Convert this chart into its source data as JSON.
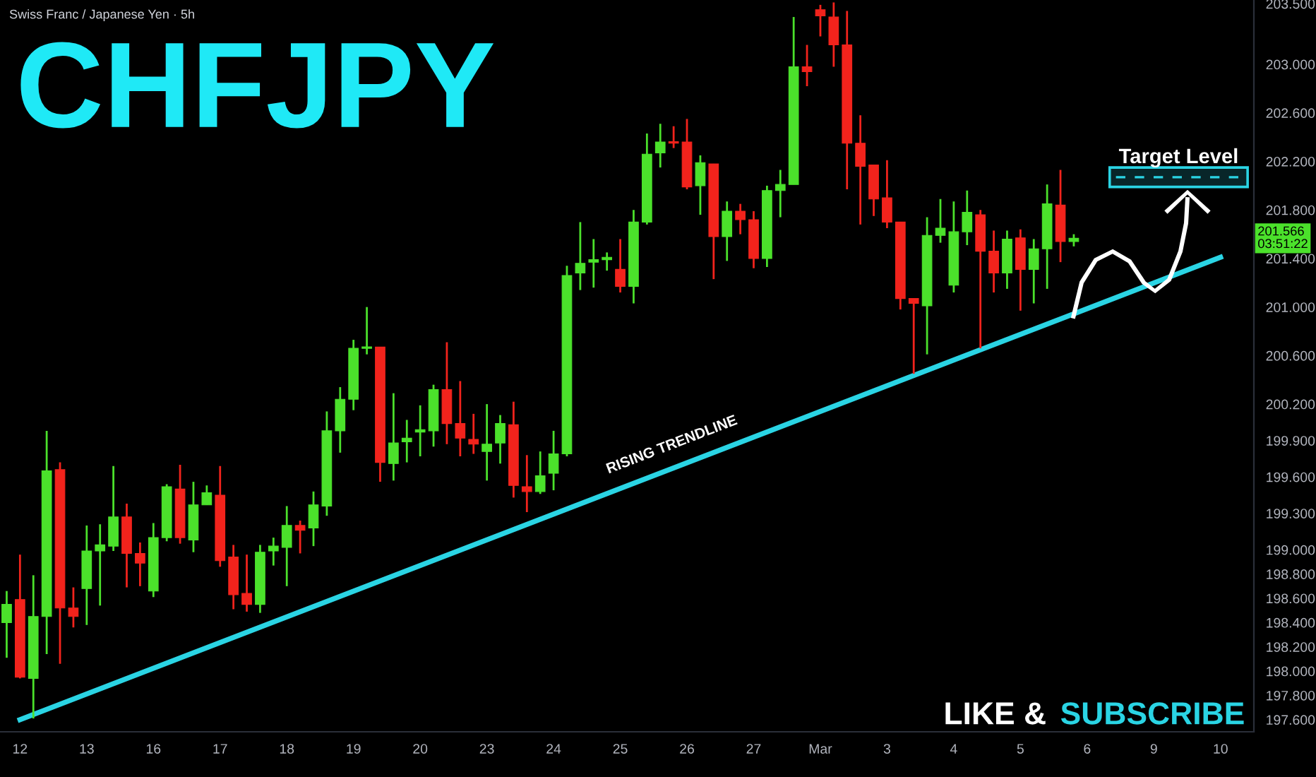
{
  "chart_data": {
    "type": "candlestick",
    "title": "CHFJPY",
    "subtitle": "Swiss Franc / Japanese Yen · 5h",
    "categories": [
      null,
      "12",
      null,
      null,
      null,
      null,
      "13",
      null,
      null,
      null,
      null,
      "16",
      null,
      null,
      null,
      null,
      "17",
      null,
      null,
      null,
      null,
      "18",
      null,
      null,
      null,
      null,
      "19",
      null,
      null,
      null,
      null,
      "20",
      null,
      null,
      null,
      null,
      "23",
      null,
      null,
      null,
      null,
      "24",
      null,
      null,
      null,
      null,
      "25",
      null,
      null,
      null,
      null,
      "26",
      null,
      null,
      null,
      null,
      "27",
      null,
      null,
      null,
      null,
      "Mar",
      null,
      null,
      null,
      null,
      "3",
      null,
      null,
      null,
      null,
      "4",
      null,
      null,
      null,
      null,
      "5",
      null,
      null,
      null,
      null,
      "6",
      null,
      null,
      null,
      null,
      "9",
      null,
      null,
      null,
      null,
      "10",
      null,
      null
    ],
    "ohlc": [
      [
        198.4,
        198.66,
        198.11,
        198.55
      ],
      [
        198.59,
        198.96,
        197.94,
        197.95
      ],
      [
        197.94,
        198.79,
        197.61,
        198.45
      ],
      [
        198.45,
        199.98,
        198.14,
        199.65
      ],
      [
        199.66,
        199.72,
        198.06,
        198.52
      ],
      [
        198.52,
        198.69,
        198.36,
        198.45
      ],
      [
        198.68,
        199.2,
        198.38,
        198.99
      ],
      [
        198.99,
        199.21,
        198.54,
        199.04
      ],
      [
        199.03,
        199.69,
        198.99,
        199.27
      ],
      [
        199.27,
        199.38,
        198.69,
        198.97
      ],
      [
        198.97,
        199.06,
        198.7,
        198.89
      ],
      [
        198.66,
        199.22,
        198.61,
        199.1
      ],
      [
        199.1,
        199.54,
        199.07,
        199.52
      ],
      [
        199.5,
        199.7,
        199.05,
        199.1
      ],
      [
        199.08,
        199.56,
        198.98,
        199.37
      ],
      [
        199.37,
        199.53,
        199.37,
        199.47
      ],
      [
        199.45,
        199.69,
        198.86,
        198.91
      ],
      [
        198.94,
        199.04,
        198.51,
        198.63
      ],
      [
        198.64,
        198.96,
        198.49,
        198.55
      ],
      [
        198.55,
        199.04,
        198.48,
        198.98
      ],
      [
        198.99,
        199.1,
        198.87,
        199.03
      ],
      [
        199.02,
        199.36,
        198.7,
        199.2
      ],
      [
        199.2,
        199.24,
        198.97,
        199.16
      ],
      [
        199.18,
        199.48,
        199.03,
        199.37
      ],
      [
        199.36,
        200.14,
        199.28,
        199.98
      ],
      [
        199.98,
        200.34,
        199.8,
        200.24
      ],
      [
        200.24,
        200.73,
        200.15,
        200.66
      ],
      [
        200.66,
        201.0,
        200.61,
        200.67
      ],
      [
        200.67,
        200.67,
        199.56,
        199.72
      ],
      [
        199.71,
        200.29,
        199.57,
        199.88
      ],
      [
        199.89,
        200.07,
        199.72,
        199.92
      ],
      [
        199.97,
        200.19,
        199.77,
        199.99
      ],
      [
        199.98,
        200.36,
        199.85,
        200.32
      ],
      [
        200.32,
        200.71,
        199.87,
        200.04
      ],
      [
        200.04,
        200.39,
        199.77,
        199.92
      ],
      [
        199.91,
        200.12,
        199.79,
        199.87
      ],
      [
        199.81,
        200.2,
        199.57,
        199.87
      ],
      [
        199.88,
        200.11,
        199.71,
        200.04
      ],
      [
        200.03,
        200.22,
        199.43,
        199.53
      ],
      [
        199.52,
        199.78,
        199.31,
        199.48
      ],
      [
        199.48,
        199.81,
        199.46,
        199.61
      ],
      [
        199.63,
        199.98,
        199.49,
        199.79
      ],
      [
        199.79,
        201.34,
        199.77,
        201.26
      ],
      [
        201.28,
        201.7,
        201.14,
        201.36
      ],
      [
        201.37,
        201.56,
        201.16,
        201.39
      ],
      [
        201.39,
        201.45,
        201.3,
        201.41
      ],
      [
        201.31,
        201.56,
        201.12,
        201.17
      ],
      [
        201.17,
        201.8,
        201.03,
        201.7
      ],
      [
        201.7,
        202.43,
        201.68,
        202.26
      ],
      [
        202.27,
        202.51,
        202.15,
        202.36
      ],
      [
        202.36,
        202.49,
        202.31,
        202.35
      ],
      [
        202.36,
        202.55,
        201.97,
        201.99
      ],
      [
        202.0,
        202.25,
        201.76,
        202.19
      ],
      [
        202.18,
        202.18,
        201.23,
        201.58
      ],
      [
        201.58,
        201.87,
        201.38,
        201.79
      ],
      [
        201.79,
        201.85,
        201.6,
        201.72
      ],
      [
        201.72,
        201.79,
        201.32,
        201.4
      ],
      [
        201.4,
        202.0,
        201.33,
        201.96
      ],
      [
        201.96,
        202.13,
        201.74,
        202.01
      ],
      [
        202.01,
        203.39,
        202.01,
        202.98
      ],
      [
        202.98,
        203.16,
        202.82,
        202.94
      ],
      [
        203.45,
        203.49,
        203.23,
        203.4
      ],
      [
        203.39,
        203.51,
        202.98,
        203.16
      ],
      [
        203.16,
        203.44,
        201.97,
        202.35
      ],
      [
        202.35,
        202.58,
        201.68,
        202.16
      ],
      [
        202.17,
        202.17,
        201.75,
        201.89
      ],
      [
        201.9,
        202.21,
        201.65,
        201.7
      ],
      [
        201.7,
        201.7,
        200.98,
        201.07
      ],
      [
        201.07,
        201.07,
        200.45,
        201.03
      ],
      [
        201.01,
        201.74,
        200.61,
        201.59
      ],
      [
        201.59,
        201.89,
        201.53,
        201.65
      ],
      [
        201.18,
        201.87,
        201.12,
        201.62
      ],
      [
        201.62,
        201.96,
        201.51,
        201.78
      ],
      [
        201.76,
        201.8,
        200.66,
        201.46
      ],
      [
        201.46,
        201.63,
        201.12,
        201.28
      ],
      [
        201.28,
        201.63,
        201.15,
        201.56
      ],
      [
        201.57,
        201.64,
        200.97,
        201.31
      ],
      [
        201.31,
        201.56,
        201.03,
        201.48
      ],
      [
        201.48,
        202.01,
        201.15,
        201.85
      ],
      [
        201.84,
        202.13,
        201.37,
        201.54
      ],
      [
        201.54,
        201.6,
        201.5,
        201.566
      ],
      null,
      null,
      null,
      null,
      null,
      null,
      null,
      null,
      null,
      null,
      null,
      null,
      null
    ],
    "colors": [
      "#4be12b",
      "#f2231c",
      "#4be12b",
      "#4be12b",
      "#f2231c",
      "#f2231c",
      "#4be12b",
      "#4be12b",
      "#4be12b",
      "#f2231c",
      "#f2231c",
      "#4be12b",
      "#4be12b",
      "#f2231c",
      "#4be12b",
      "#4be12b",
      "#f2231c",
      "#f2231c",
      "#f2231c",
      "#4be12b",
      "#4be12b",
      "#4be12b",
      "#f2231c",
      "#4be12b",
      "#4be12b",
      "#4be12b",
      "#4be12b",
      "#4be12b",
      "#f2231c",
      "#4be12b",
      "#4be12b",
      "#4be12b",
      "#4be12b",
      "#f2231c",
      "#f2231c",
      "#f2231c",
      "#4be12b",
      "#4be12b",
      "#f2231c",
      "#f2231c",
      "#4be12b",
      "#4be12b",
      "#4be12b",
      "#4be12b",
      "#4be12b",
      "#4be12b",
      "#f2231c",
      "#4be12b",
      "#4be12b",
      "#4be12b",
      "#f2231c",
      "#f2231c",
      "#4be12b",
      "#f2231c",
      "#4be12b",
      "#f2231c",
      "#f2231c",
      "#4be12b",
      "#4be12b",
      "#4be12b",
      "#f2231c",
      "#f2231c",
      "#f2231c",
      "#f2231c",
      "#f2231c",
      "#f2231c",
      "#f2231c",
      "#f2231c",
      "#f2231c",
      "#4be12b",
      "#4be12b",
      "#4be12b",
      "#4be12b",
      "#f2231c",
      "#f2231c",
      "#4be12b",
      "#f2231c",
      "#4be12b",
      "#4be12b",
      "#f2231c",
      "#4be12b",
      null,
      null,
      null,
      null,
      null,
      null,
      null,
      null,
      null,
      null,
      null,
      null,
      null
    ],
    "series": [
      {
        "type": "line",
        "name": "RISING TRENDLINE",
        "x": [
          "12",
          "10"
        ],
        "values": [
          197.6,
          201.41
        ],
        "color": "#2ad4e4"
      }
    ],
    "bands": [
      {
        "axis": "y",
        "from": 201.99,
        "to": 202.15,
        "label": "Target Level",
        "color": "#2ad4e4"
      }
    ],
    "annotations": [
      "LIKE &",
      "SUBSCRIBE",
      {
        "text": "201.566\n03:51:22",
        "y": 201.566
      }
    ],
    "ylim": [
      197.5,
      203.53
    ],
    "yticks": [
      {
        "value": 197.6,
        "label": "197.600"
      },
      {
        "value": 197.8,
        "label": "197.800"
      },
      {
        "value": 198.0,
        "label": "198.000"
      },
      {
        "value": 198.2,
        "label": "198.200"
      },
      {
        "value": 198.4,
        "label": "198.400"
      },
      {
        "value": 198.6,
        "label": "198.600"
      },
      {
        "value": 198.8,
        "label": "198.800"
      },
      {
        "value": 199.0,
        "label": "199.000"
      },
      {
        "value": 199.3,
        "label": "199.300"
      },
      {
        "value": 199.6,
        "label": "199.600"
      },
      {
        "value": 199.9,
        "label": "199.900"
      },
      {
        "value": 200.2,
        "label": "200.200"
      },
      {
        "value": 200.6,
        "label": "200.600"
      },
      {
        "value": 201.0,
        "label": "201.000"
      },
      {
        "value": 201.4,
        "label": "201.400"
      },
      {
        "value": 201.8,
        "label": "201.800"
      },
      {
        "value": 202.2,
        "label": "202.200"
      },
      {
        "value": 202.6,
        "label": "202.600"
      },
      {
        "value": 203.0,
        "label": "203.000"
      },
      {
        "value": 203.5,
        "label": "203.500"
      }
    ]
  }
}
